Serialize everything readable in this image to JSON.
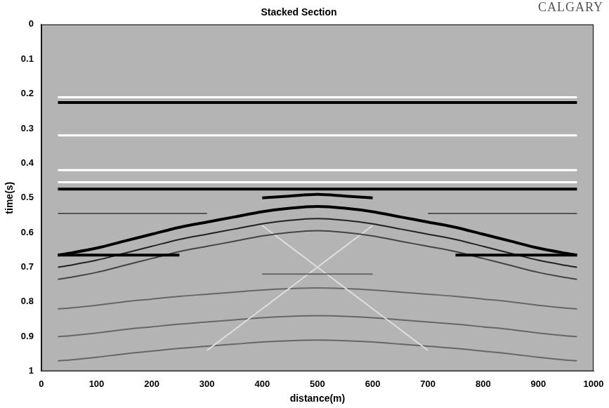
{
  "chart_data": {
    "type": "line",
    "title": "Stacked Section",
    "x_label": "distance(m)",
    "y_label": "time(s)",
    "annotations": [
      "CALGARY"
    ],
    "xlim": [
      0,
      1000
    ],
    "xticks": [
      0,
      100,
      200,
      300,
      400,
      500,
      600,
      700,
      800,
      900,
      1000
    ],
    "ylim": [
      0,
      1
    ],
    "yticks": [
      0,
      0.1,
      0.2,
      0.3,
      0.4,
      0.5,
      0.6,
      0.7,
      0.8,
      0.9,
      1
    ],
    "grid": false,
    "x": [
      30,
      50,
      100,
      150,
      200,
      250,
      300,
      350,
      400,
      450,
      500,
      550,
      600,
      650,
      700,
      750,
      800,
      850,
      900,
      950,
      970
    ],
    "series": [
      {
        "color": "#ffffff",
        "values": [
          0.21,
          0.21,
          0.21,
          0.21,
          0.21,
          0.21,
          0.21,
          0.21,
          0.21,
          0.21,
          0.21,
          0.21,
          0.21,
          0.21,
          0.21,
          0.21,
          0.21,
          0.21,
          0.21,
          0.21,
          0.21
        ]
      },
      {
        "color": "#000000",
        "values": [
          0.225,
          0.225,
          0.225,
          0.225,
          0.225,
          0.225,
          0.225,
          0.225,
          0.225,
          0.225,
          0.225,
          0.225,
          0.225,
          0.225,
          0.225,
          0.225,
          0.225,
          0.225,
          0.225,
          0.225,
          0.225
        ]
      },
      {
        "color": "#ffffff",
        "values": [
          0.32,
          0.32,
          0.32,
          0.32,
          0.32,
          0.32,
          0.32,
          0.32,
          0.32,
          0.32,
          0.32,
          0.32,
          0.32,
          0.32,
          0.32,
          0.32,
          0.32,
          0.32,
          0.32,
          0.32,
          0.32
        ]
      },
      {
        "color": "#ffffff",
        "values": [
          0.42,
          0.42,
          0.42,
          0.42,
          0.42,
          0.42,
          0.42,
          0.42,
          0.42,
          0.42,
          0.42,
          0.42,
          0.42,
          0.42,
          0.42,
          0.42,
          0.42,
          0.42,
          0.42,
          0.42,
          0.42
        ]
      },
      {
        "color": "#ffffff",
        "values": [
          0.455,
          0.455,
          0.455,
          0.455,
          0.455,
          0.455,
          0.455,
          0.455,
          0.455,
          0.455,
          0.455,
          0.455,
          0.455,
          0.455,
          0.455,
          0.455,
          0.455,
          0.455,
          0.455,
          0.455,
          0.455
        ]
      },
      {
        "color": "#000000",
        "values": [
          0.475,
          0.475,
          0.475,
          0.475,
          0.475,
          0.475,
          0.475,
          0.475,
          0.475,
          0.475,
          0.475,
          0.475,
          0.475,
          0.475,
          0.475,
          0.475,
          0.475,
          0.475,
          0.475,
          0.475,
          0.475
        ]
      },
      {
        "color": "#000000",
        "values": [
          null,
          null,
          null,
          null,
          null,
          null,
          null,
          null,
          0.5,
          0.495,
          0.49,
          0.495,
          0.5,
          null,
          null,
          null,
          null,
          null,
          null,
          null,
          null
        ]
      },
      {
        "color": "#555555",
        "values": [
          0.545,
          0.545,
          0.545,
          0.545,
          0.545,
          0.545,
          0.545,
          null,
          null,
          null,
          null,
          null,
          null,
          null,
          0.545,
          0.545,
          0.545,
          0.545,
          0.545,
          0.545,
          0.545
        ]
      },
      {
        "color": "#000000",
        "values": [
          0.665,
          0.66,
          0.645,
          0.625,
          0.605,
          0.585,
          0.57,
          0.555,
          0.54,
          0.53,
          0.525,
          0.53,
          0.54,
          0.555,
          0.57,
          0.585,
          0.605,
          0.625,
          0.645,
          0.66,
          0.665
        ]
      },
      {
        "color": "#000000",
        "values": [
          0.665,
          0.665,
          0.665,
          0.665,
          0.665,
          0.665,
          null,
          null,
          null,
          null,
          null,
          null,
          null,
          null,
          null,
          0.665,
          0.665,
          0.665,
          0.665,
          0.665,
          0.665
        ]
      },
      {
        "color": "#222222",
        "values": [
          0.7,
          0.695,
          0.68,
          0.66,
          0.64,
          0.62,
          0.605,
          0.59,
          0.575,
          0.565,
          0.56,
          0.565,
          0.575,
          0.59,
          0.605,
          0.62,
          0.64,
          0.66,
          0.68,
          0.695,
          0.7
        ]
      },
      {
        "color": "#444444",
        "values": [
          0.735,
          0.73,
          0.715,
          0.695,
          0.675,
          0.655,
          0.64,
          0.625,
          0.61,
          0.6,
          0.595,
          0.6,
          0.61,
          0.625,
          0.64,
          0.655,
          0.675,
          0.695,
          0.715,
          0.73,
          0.735
        ]
      },
      {
        "color": "#666666",
        "values": [
          null,
          null,
          null,
          null,
          null,
          null,
          null,
          null,
          0.72,
          0.72,
          0.72,
          0.72,
          0.72,
          null,
          null,
          null,
          null,
          null,
          null,
          null,
          null
        ]
      },
      {
        "color": "#dddddd",
        "values": [
          null,
          null,
          null,
          null,
          null,
          null,
          null,
          null,
          0.58,
          0.64,
          0.7,
          0.76,
          0.82,
          0.88,
          0.94,
          null,
          null,
          null,
          null,
          null,
          null
        ]
      },
      {
        "color": "#dddddd",
        "values": [
          null,
          null,
          null,
          null,
          null,
          null,
          0.94,
          0.88,
          0.82,
          0.76,
          0.7,
          0.64,
          0.58,
          null,
          null,
          null,
          null,
          null,
          null,
          null,
          null
        ]
      },
      {
        "color": "#666666",
        "values": [
          0.82,
          0.818,
          0.81,
          0.8,
          0.792,
          0.784,
          0.778,
          0.772,
          0.766,
          0.762,
          0.76,
          0.762,
          0.766,
          0.772,
          0.778,
          0.784,
          0.792,
          0.8,
          0.81,
          0.818,
          0.82
        ]
      },
      {
        "color": "#666666",
        "values": [
          0.9,
          0.898,
          0.89,
          0.88,
          0.872,
          0.864,
          0.858,
          0.852,
          0.846,
          0.842,
          0.84,
          0.842,
          0.846,
          0.852,
          0.858,
          0.864,
          0.872,
          0.88,
          0.89,
          0.898,
          0.9
        ]
      },
      {
        "color": "#666666",
        "values": [
          0.97,
          0.968,
          0.96,
          0.95,
          0.942,
          0.934,
          0.928,
          0.922,
          0.916,
          0.912,
          0.91,
          0.912,
          0.916,
          0.922,
          0.928,
          0.934,
          0.942,
          0.95,
          0.96,
          0.968,
          0.97
        ]
      }
    ]
  }
}
